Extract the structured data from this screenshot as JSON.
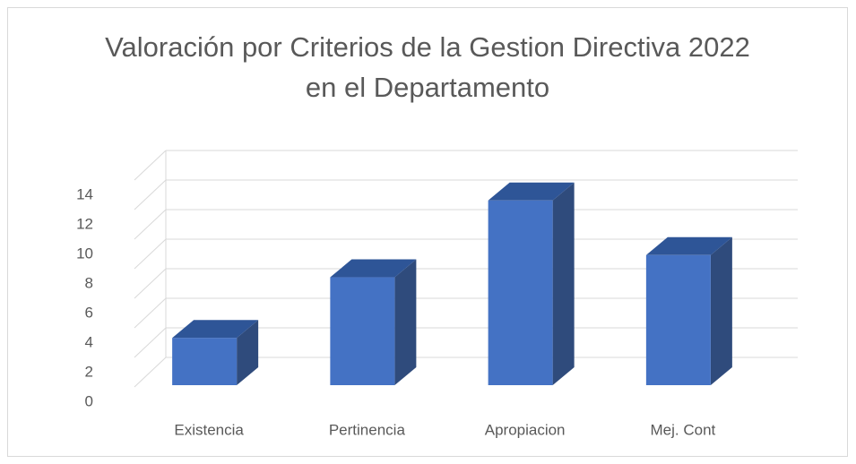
{
  "chart_data": {
    "type": "bar3d",
    "title": "Valoración por Criterios de la Gestion Directiva 2022 en el Departamento",
    "categories": [
      "Existencia",
      "Pertinencia",
      "Apropiacion",
      "Mej. Cont"
    ],
    "values": [
      3.2,
      7.3,
      12.5,
      8.8
    ],
    "color": "#4472c4",
    "ylim": [
      0,
      14
    ],
    "yticks": [
      0,
      2,
      4,
      6,
      8,
      10,
      12,
      14
    ],
    "grid": true
  }
}
